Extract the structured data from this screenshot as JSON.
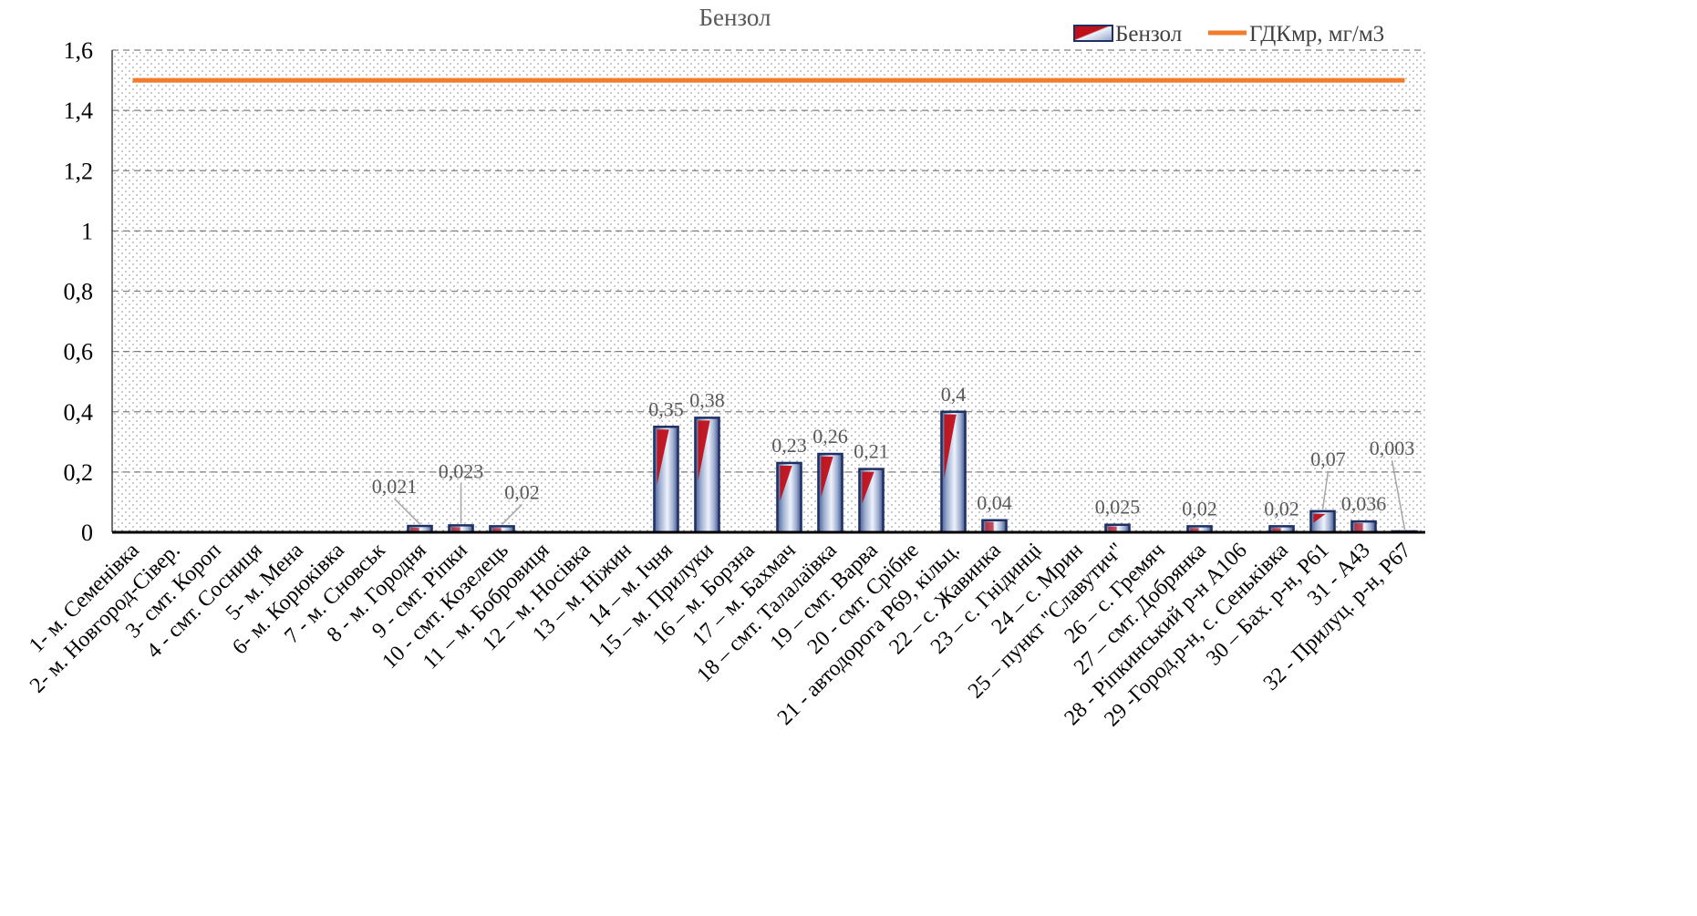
{
  "chart_data": {
    "type": "bar",
    "title": "Бензол",
    "xlabel": "",
    "ylabel": "",
    "ylim": [
      0,
      1.6
    ],
    "yticks": [
      0,
      0.2,
      0.4,
      0.6,
      0.8,
      1,
      1.2,
      1.4,
      1.6
    ],
    "ytick_labels": [
      "0",
      "0,2",
      "0,4",
      "0,6",
      "0,8",
      "1",
      "1,2",
      "1,4",
      "1,6"
    ],
    "grid": true,
    "legend_position": "top-right",
    "categories": [
      "1- м. Семенівка",
      "2- м. Новгород-Сівер.",
      "3- смт. Короп",
      "4 - смт. Сосниця",
      "5- м. Мена",
      "6- м. Корюківка",
      "7 - м. Сновськ",
      "8 - м. Городня",
      "9 - смт. Ріпки",
      "10 - смт. Козелець",
      "11 – м. Бобровиця",
      "12 – м. Носівка",
      "13 – м. Ніжин",
      "14 – м. Ічня",
      "15 – м. Прилуки",
      "16 – м. Борзна",
      "17 – м. Бахмач",
      "18 – смт. Талалаївка",
      "19 – смт. Варва",
      "20 - смт. Срібне",
      "21 - автодорога Р69, кільц.",
      "22 – с. Жавинка",
      "23 – с. Гнідинці",
      "24 – с. Мрин",
      "25 – пункт \"Славутич\"",
      "26 – с. Гремяч",
      "27 – смт. Добрянка",
      "28 - Ріпкинський р-н А106",
      "29 -Город.р-н, с. Сеньківка",
      "30 – Бах. р-н, Р61",
      "31 -  А43",
      "32 - Прилуц. р-н, Р67"
    ],
    "series": [
      {
        "name": "Бензол",
        "type": "bar",
        "values": [
          null,
          null,
          null,
          null,
          null,
          null,
          null,
          0.021,
          0.023,
          0.02,
          null,
          null,
          null,
          0.35,
          0.38,
          null,
          0.23,
          0.26,
          0.21,
          null,
          0.4,
          0.04,
          null,
          null,
          0.025,
          null,
          0.02,
          null,
          0.02,
          0.07,
          0.036,
          0.003
        ],
        "labels": [
          null,
          null,
          null,
          null,
          null,
          null,
          null,
          "0,021",
          "0,023",
          "0,02",
          null,
          null,
          null,
          "0,35",
          "0,38",
          null,
          "0,23",
          "0,26",
          "0,21",
          null,
          "0,4",
          "0,04",
          null,
          null,
          "0,025",
          null,
          "0,02",
          null,
          "0,02",
          "0,07",
          "0,036",
          "0,003"
        ],
        "color": "#8ea2c6",
        "accent": "#c0101a",
        "edge": "#1e2f63"
      },
      {
        "name": "ГДКмр, мг/м3",
        "type": "line",
        "value": 1.5,
        "color": "#f07c2c"
      }
    ]
  },
  "legend": {
    "bar_label": "Бензол",
    "line_label": "ГДКмр, мг/м3"
  }
}
